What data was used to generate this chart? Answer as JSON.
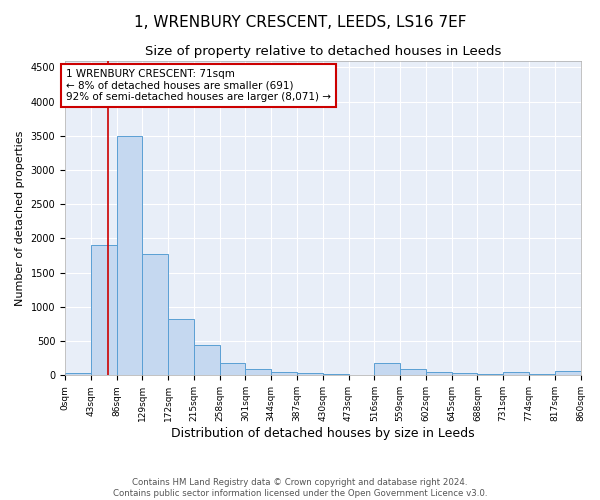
{
  "title": "1, WRENBURY CRESCENT, LEEDS, LS16 7EF",
  "subtitle": "Size of property relative to detached houses in Leeds",
  "xlabel": "Distribution of detached houses by size in Leeds",
  "ylabel": "Number of detached properties",
  "bin_edges": [
    0,
    43,
    86,
    129,
    172,
    215,
    258,
    301,
    344,
    387,
    430,
    473,
    516,
    559,
    602,
    645,
    688,
    731,
    774,
    817,
    860
  ],
  "bar_heights": [
    40,
    1900,
    3500,
    1775,
    825,
    450,
    175,
    100,
    50,
    30,
    20,
    10,
    175,
    100,
    50,
    30,
    20,
    50,
    20,
    60
  ],
  "bar_color": "#c5d8f0",
  "bar_edge_color": "#5a9fd4",
  "property_line_x": 71,
  "property_line_color": "#cc0000",
  "annotation_text": "1 WRENBURY CRESCENT: 71sqm\n← 8% of detached houses are smaller (691)\n92% of semi-detached houses are larger (8,071) →",
  "annotation_box_color": "white",
  "annotation_border_color": "#cc0000",
  "ylim": [
    0,
    4600
  ],
  "yticks": [
    0,
    500,
    1000,
    1500,
    2000,
    2500,
    3000,
    3500,
    4000,
    4500
  ],
  "footnote": "Contains HM Land Registry data © Crown copyright and database right 2024.\nContains public sector information licensed under the Open Government Licence v3.0.",
  "title_fontsize": 11,
  "subtitle_fontsize": 9.5,
  "xlabel_fontsize": 9,
  "ylabel_fontsize": 8,
  "tick_fontsize": 7,
  "bg_color": "#e8eef8",
  "grid_color": "#ffffff"
}
